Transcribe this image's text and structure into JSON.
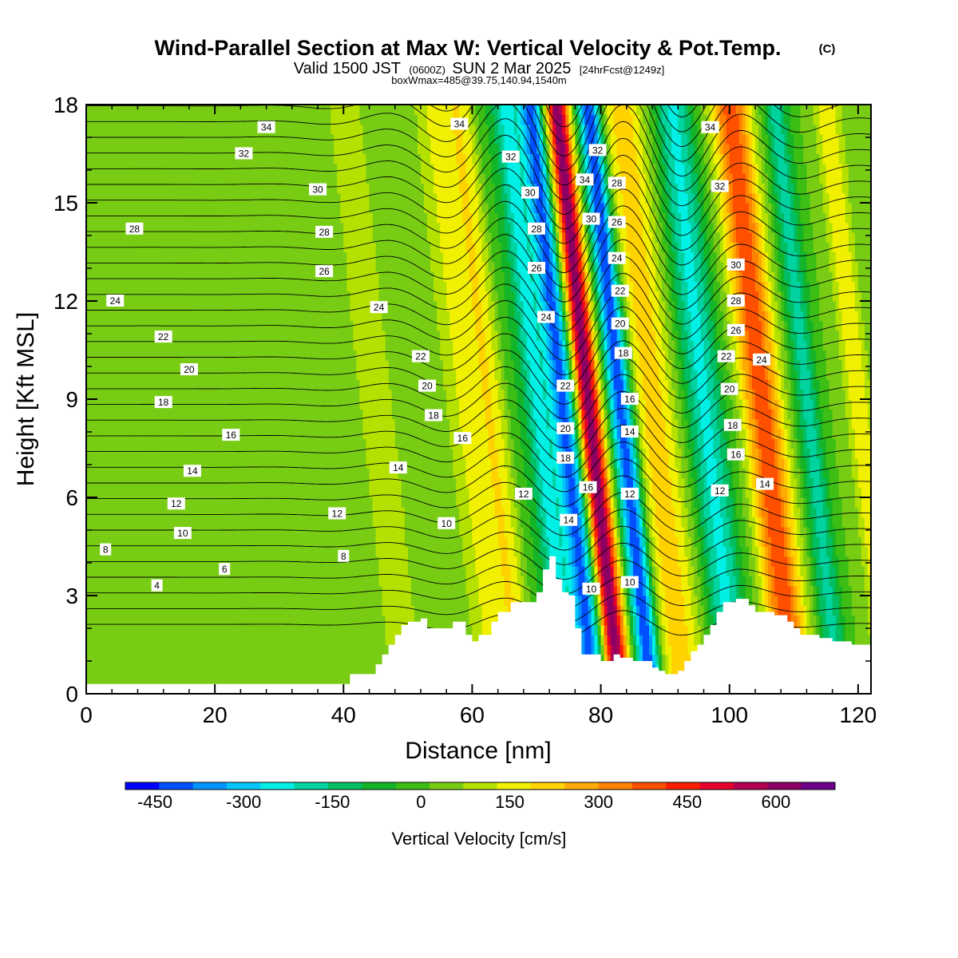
{
  "header": {
    "title": "Wind-Parallel Section at Max W: Vertical Velocity & Pot.Temp.",
    "copyright": "(C)",
    "valid_prefix": "Valid 1500 JST",
    "valid_utc": "(0600Z)",
    "valid_suffix": "SUN 2 Mar 2025",
    "forecast": "[24hrFcst@1249z]",
    "box_info": "boxWmax=485@39.75,140.94,1540m"
  },
  "chart_data": {
    "type": "heatmap",
    "title": "Wind-Parallel Section at Max W: Vertical Velocity & Pot.Temp.",
    "xlabel": "Distance [nm]",
    "ylabel": "Height [Kft MSL]",
    "xlim": [
      0,
      122
    ],
    "ylim": [
      0,
      18
    ],
    "x_ticks": [
      0,
      20,
      40,
      60,
      80,
      100,
      120
    ],
    "y_ticks": [
      0,
      3,
      6,
      9,
      12,
      15,
      18
    ],
    "colorbar": {
      "label": "Vertical Velocity [cm/s]",
      "tick_values": [
        -450,
        -300,
        -150,
        0,
        150,
        300,
        450,
        600
      ],
      "tick_labels": [
        "-450",
        "-300",
        "-150",
        "0",
        "150",
        "300",
        "450",
        "600"
      ],
      "min": -500,
      "max": 700,
      "colors": [
        "#0000ff",
        "#0050ff",
        "#0096ff",
        "#00c8ff",
        "#00f0e6",
        "#00d2a0",
        "#00be64",
        "#14b428",
        "#3cbe14",
        "#78cd14",
        "#b4e100",
        "#f0f000",
        "#ffd200",
        "#ffaa00",
        "#ff8200",
        "#ff5000",
        "#ff1e00",
        "#e6002d",
        "#b40050",
        "#8c0064",
        "#6e008c"
      ]
    },
    "terrain_profile": [
      [
        0,
        0.3
      ],
      [
        40,
        0.3
      ],
      [
        41,
        0.6
      ],
      [
        44,
        0.6
      ],
      [
        45,
        0.9
      ],
      [
        46,
        1.2
      ],
      [
        47,
        1.5
      ],
      [
        48,
        1.8
      ],
      [
        49,
        2.1
      ],
      [
        50,
        2.2
      ],
      [
        52,
        2.3
      ],
      [
        53,
        2.0
      ],
      [
        56,
        2.0
      ],
      [
        57,
        2.2
      ],
      [
        58,
        2.2
      ],
      [
        59,
        1.8
      ],
      [
        60,
        1.6
      ],
      [
        61,
        1.8
      ],
      [
        63,
        2.2
      ],
      [
        64,
        2.5
      ],
      [
        66,
        2.8
      ],
      [
        69,
        2.8
      ],
      [
        70,
        3.1
      ],
      [
        71,
        3.8
      ],
      [
        72,
        4.2
      ],
      [
        73,
        3.5
      ],
      [
        74,
        3.1
      ],
      [
        75,
        3.0
      ],
      [
        76,
        2.0
      ],
      [
        77,
        1.2
      ],
      [
        79,
        1.2
      ],
      [
        80,
        1.0
      ],
      [
        82,
        1.2
      ],
      [
        83,
        1.1
      ],
      [
        85,
        1.0
      ],
      [
        88,
        0.8
      ],
      [
        89,
        0.7
      ],
      [
        90,
        0.6
      ],
      [
        92,
        0.7
      ],
      [
        93,
        1.0
      ],
      [
        94,
        1.3
      ],
      [
        95,
        1.5
      ],
      [
        96,
        1.8
      ],
      [
        97,
        2.1
      ],
      [
        98,
        2.5
      ],
      [
        99,
        2.8
      ],
      [
        101,
        2.9
      ],
      [
        103,
        2.7
      ],
      [
        104,
        2.5
      ],
      [
        106,
        2.5
      ],
      [
        107,
        2.4
      ],
      [
        109,
        2.2
      ],
      [
        110,
        2.0
      ],
      [
        111,
        1.8
      ],
      [
        112,
        1.8
      ],
      [
        114,
        1.7
      ],
      [
        116,
        1.6
      ],
      [
        118,
        1.6
      ],
      [
        119,
        1.5
      ],
      [
        121,
        1.5
      ],
      [
        122,
        1.6
      ]
    ],
    "velocity_bands": [
      {
        "x": 45,
        "w": 6.0,
        "amp": 60
      },
      {
        "x": 58,
        "w": 2.5,
        "amp": 90
      },
      {
        "x": 63,
        "w": 3.5,
        "amp": 180
      },
      {
        "x": 66,
        "w": 2.2,
        "amp": -110
      },
      {
        "x": 70,
        "w": 2.0,
        "amp": -250
      },
      {
        "x": 74,
        "w": 2.0,
        "amp": -430
      },
      {
        "x": 78,
        "w": 1.8,
        "amp": 610
      },
      {
        "x": 83,
        "w": 1.8,
        "amp": -480
      },
      {
        "x": 88,
        "w": 3.5,
        "amp": 200
      },
      {
        "x": 96,
        "w": 3.0,
        "amp": -250
      },
      {
        "x": 105,
        "w": 3.0,
        "amp": 380
      },
      {
        "x": 112,
        "w": 2.0,
        "amp": -200
      },
      {
        "x": 120,
        "w": 2.0,
        "amp": 160
      }
    ],
    "theta_levels": [
      4,
      6,
      8,
      10,
      12,
      14,
      16,
      18,
      20,
      22,
      24,
      26,
      28,
      30,
      32,
      34
    ],
    "contour_labels": [
      {
        "x": 28,
        "y": 17.3,
        "text": "34"
      },
      {
        "x": 58,
        "y": 17.4,
        "text": "34"
      },
      {
        "x": 24.5,
        "y": 16.5,
        "text": "32"
      },
      {
        "x": 66,
        "y": 16.4,
        "text": "32"
      },
      {
        "x": 36,
        "y": 15.4,
        "text": "30"
      },
      {
        "x": 7.5,
        "y": 14.2,
        "text": "28"
      },
      {
        "x": 37,
        "y": 14.1,
        "text": "28"
      },
      {
        "x": 37,
        "y": 12.9,
        "text": "26"
      },
      {
        "x": 4.5,
        "y": 12.0,
        "text": "24"
      },
      {
        "x": 45.5,
        "y": 11.8,
        "text": "24"
      },
      {
        "x": 12,
        "y": 10.9,
        "text": "22"
      },
      {
        "x": 52,
        "y": 10.3,
        "text": "22"
      },
      {
        "x": 16,
        "y": 9.9,
        "text": "20"
      },
      {
        "x": 53,
        "y": 9.4,
        "text": "20"
      },
      {
        "x": 12,
        "y": 8.9,
        "text": "18"
      },
      {
        "x": 54,
        "y": 8.5,
        "text": "18"
      },
      {
        "x": 22.5,
        "y": 7.9,
        "text": "16"
      },
      {
        "x": 58.5,
        "y": 7.8,
        "text": "16"
      },
      {
        "x": 16.5,
        "y": 6.8,
        "text": "14"
      },
      {
        "x": 48.5,
        "y": 6.9,
        "text": "14"
      },
      {
        "x": 14,
        "y": 5.8,
        "text": "12"
      },
      {
        "x": 39,
        "y": 5.5,
        "text": "12"
      },
      {
        "x": 68,
        "y": 6.1,
        "text": "12"
      },
      {
        "x": 15,
        "y": 4.9,
        "text": "10"
      },
      {
        "x": 56,
        "y": 5.2,
        "text": "10"
      },
      {
        "x": 3,
        "y": 4.4,
        "text": "8"
      },
      {
        "x": 40,
        "y": 4.2,
        "text": "8"
      },
      {
        "x": 21.5,
        "y": 3.8,
        "text": "6"
      },
      {
        "x": 11,
        "y": 3.3,
        "text": "4"
      },
      {
        "x": 69,
        "y": 15.3,
        "text": "30"
      },
      {
        "x": 70,
        "y": 14.2,
        "text": "28"
      },
      {
        "x": 70,
        "y": 13.0,
        "text": "26"
      },
      {
        "x": 71.5,
        "y": 11.5,
        "text": "24"
      },
      {
        "x": 74.5,
        "y": 9.4,
        "text": "22"
      },
      {
        "x": 74.5,
        "y": 8.1,
        "text": "20"
      },
      {
        "x": 74.5,
        "y": 7.2,
        "text": "18"
      },
      {
        "x": 78,
        "y": 6.3,
        "text": "16"
      },
      {
        "x": 75,
        "y": 5.3,
        "text": "14"
      },
      {
        "x": 78.5,
        "y": 3.2,
        "text": "10"
      },
      {
        "x": 77.5,
        "y": 15.7,
        "text": "34"
      },
      {
        "x": 79.5,
        "y": 16.6,
        "text": "32"
      },
      {
        "x": 78.5,
        "y": 14.5,
        "text": "30"
      },
      {
        "x": 82.5,
        "y": 15.6,
        "text": "28"
      },
      {
        "x": 82.5,
        "y": 14.4,
        "text": "26"
      },
      {
        "x": 82.5,
        "y": 13.3,
        "text": "24"
      },
      {
        "x": 83,
        "y": 12.3,
        "text": "22"
      },
      {
        "x": 83,
        "y": 11.3,
        "text": "20"
      },
      {
        "x": 83.5,
        "y": 10.4,
        "text": "18"
      },
      {
        "x": 84.5,
        "y": 9.0,
        "text": "16"
      },
      {
        "x": 84.5,
        "y": 8.0,
        "text": "14"
      },
      {
        "x": 84.5,
        "y": 6.1,
        "text": "12"
      },
      {
        "x": 84.5,
        "y": 3.4,
        "text": "10"
      },
      {
        "x": 97,
        "y": 17.3,
        "text": "34"
      },
      {
        "x": 98.5,
        "y": 15.5,
        "text": "32"
      },
      {
        "x": 101,
        "y": 13.1,
        "text": "30"
      },
      {
        "x": 101,
        "y": 12.0,
        "text": "28"
      },
      {
        "x": 101,
        "y": 11.1,
        "text": "26"
      },
      {
        "x": 105,
        "y": 10.2,
        "text": "24"
      },
      {
        "x": 99.5,
        "y": 10.3,
        "text": "22"
      },
      {
        "x": 100,
        "y": 9.3,
        "text": "20"
      },
      {
        "x": 100.5,
        "y": 8.2,
        "text": "18"
      },
      {
        "x": 101,
        "y": 7.3,
        "text": "16"
      },
      {
        "x": 98.5,
        "y": 6.2,
        "text": "12"
      },
      {
        "x": 105.5,
        "y": 6.4,
        "text": "14"
      }
    ]
  }
}
